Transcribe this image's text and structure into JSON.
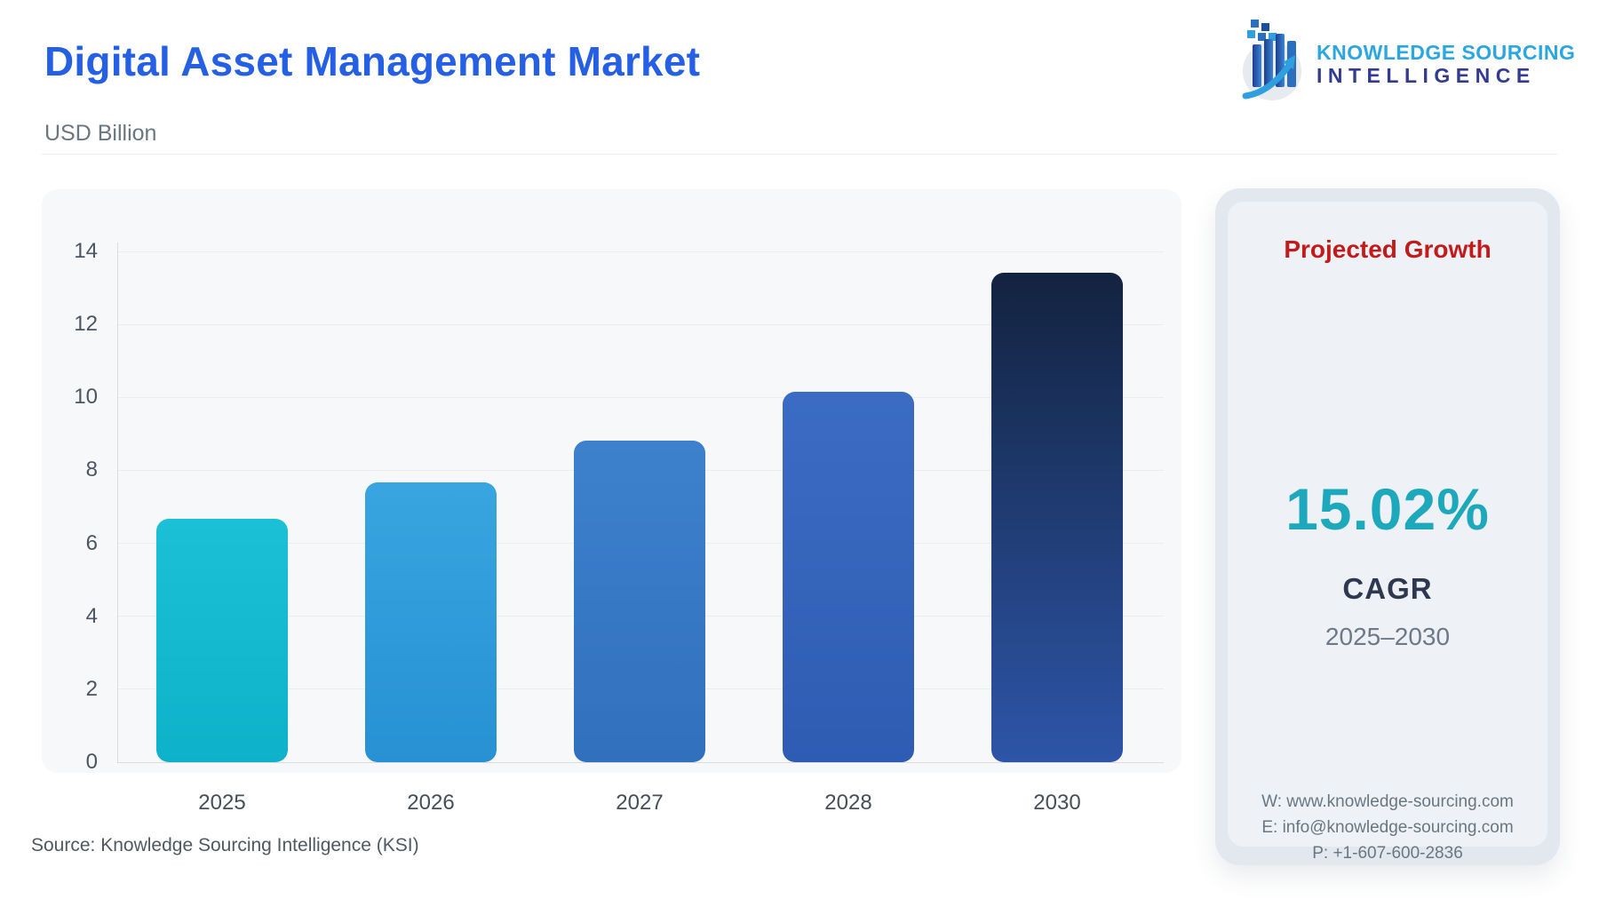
{
  "header": {
    "title": "Digital Asset Management Market",
    "subtitle": "USD Billion"
  },
  "logo": {
    "line1": "KNOWLEDGE SOURCING",
    "line2": "INTELLIGENCE",
    "line1_color": "#2aa7e0",
    "line2_color": "#333b90"
  },
  "chart_data": {
    "type": "bar",
    "title": "Digital Asset Management Market",
    "ylabel": "USD Billion",
    "xlabel": "",
    "categories": [
      "2025",
      "2026",
      "2027",
      "2028",
      "2030"
    ],
    "values": [
      6.67,
      7.67,
      8.82,
      10.15,
      13.42
    ],
    "ylim": [
      0,
      14
    ],
    "y_ticks": [
      0,
      2,
      4,
      6,
      8,
      10,
      12,
      14
    ],
    "grid": true,
    "legend": "none",
    "bar_gradients": [
      [
        "#1cc0d6",
        "#0db1c9"
      ],
      [
        "#38a5e0",
        "#2791d3"
      ],
      [
        "#3d81cd",
        "#3170bd"
      ],
      [
        "#3b6cc3",
        "#2f5cb3"
      ],
      [
        "#13233f",
        "#2d55a8"
      ]
    ]
  },
  "side_panel": {
    "heading": "Projected Growth",
    "heading_color": "#c21b1b",
    "value": "15.02%",
    "value_color": "#1da9bb",
    "label": "CAGR",
    "period": "2025–2030",
    "contact": {
      "website": "W: www.knowledge-sourcing.com",
      "email": "E: info@knowledge-sourcing.com",
      "phone": "P: +1-607-600-2836"
    }
  },
  "footer": {
    "source": "Source: Knowledge Sourcing Intelligence (KSI)"
  }
}
